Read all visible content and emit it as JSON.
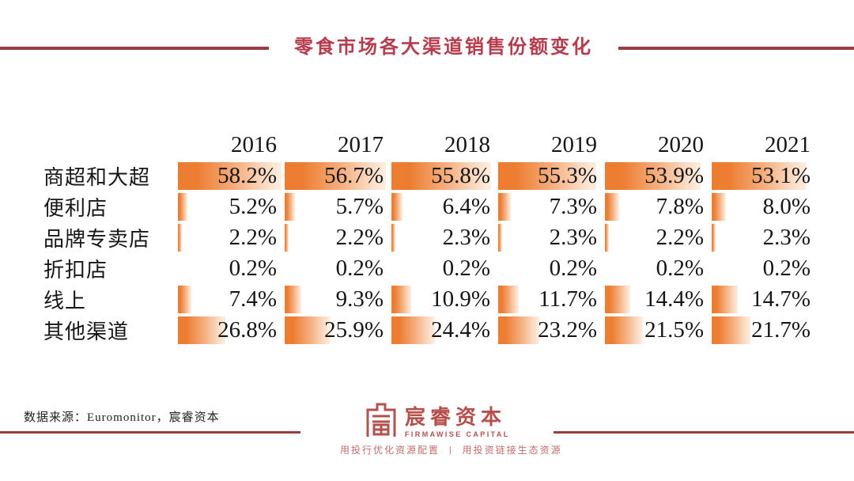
{
  "title": "零食市场各大渠道销售份额变化",
  "chart_data": {
    "type": "bar",
    "title": "零食市场各大渠道销售份额变化",
    "categories": [
      "2016",
      "2017",
      "2018",
      "2019",
      "2020",
      "2021"
    ],
    "series": [
      {
        "name": "商超和大超",
        "values": [
          58.2,
          56.7,
          55.8,
          55.3,
          53.9,
          53.1
        ]
      },
      {
        "name": "便利店",
        "values": [
          5.2,
          5.7,
          6.4,
          7.3,
          7.8,
          8.0
        ]
      },
      {
        "name": "品牌专卖店",
        "values": [
          2.2,
          2.2,
          2.3,
          2.3,
          2.2,
          2.3
        ]
      },
      {
        "name": "折扣店",
        "values": [
          0.2,
          0.2,
          0.2,
          0.2,
          0.2,
          0.2
        ]
      },
      {
        "name": "线上",
        "values": [
          7.4,
          9.3,
          10.9,
          11.7,
          14.4,
          14.7
        ]
      },
      {
        "name": "其他渠道",
        "values": [
          26.8,
          25.9,
          24.4,
          23.2,
          21.5,
          21.7
        ]
      }
    ],
    "unit": "%",
    "bar_scale_max": 58.2,
    "orientation": "horizontal-data-bars",
    "legend_position": "none",
    "grid": false
  },
  "footer": {
    "source": "数据来源：Euromonitor，宸睿资本"
  },
  "logo": {
    "name": "宸睿资本",
    "subtitle": "FIRMAWISE CAPITAL",
    "tagline_left": "用投行优化资源配置",
    "tagline_divider": "|",
    "tagline_right": "用投资链接生态资源"
  },
  "colors": {
    "bar_orange": "#ED7D31",
    "bar_fade": "#FDEFE3",
    "title_red": "#B63C4D",
    "rule_red": "#9A3C40",
    "logo_red": "#B5504D",
    "tagline_red": "#C06E6D",
    "text_black": "#161616"
  }
}
